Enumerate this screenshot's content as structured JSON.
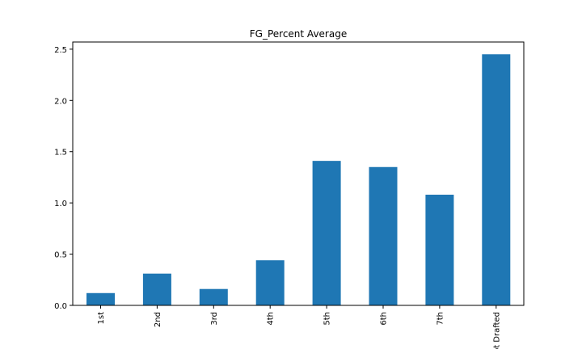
{
  "chart_data": {
    "type": "bar",
    "title": "FG_Percent Average",
    "xlabel": "",
    "ylabel": "",
    "categories": [
      "1st",
      "2nd",
      "3rd",
      "4th",
      "5th",
      "6th",
      "7th",
      "Not Drafted"
    ],
    "values": [
      0.12,
      0.31,
      0.16,
      0.44,
      1.41,
      1.35,
      1.08,
      2.45
    ],
    "ylim": [
      0,
      2.57
    ],
    "yticks": [
      0.0,
      0.5,
      1.0,
      1.5,
      2.0,
      2.5
    ],
    "ytick_labels": [
      "0.0",
      "0.5",
      "1.0",
      "1.5",
      "2.0",
      "2.5"
    ],
    "bar_color": "#1f77b4",
    "grid": false,
    "legend": "none"
  }
}
